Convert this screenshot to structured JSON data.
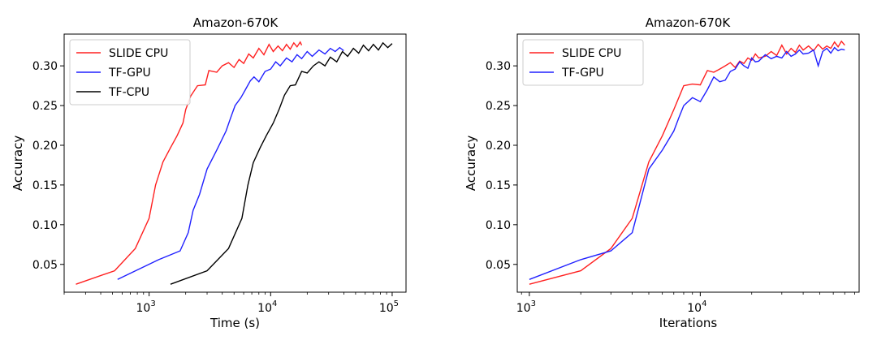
{
  "chart_data": [
    {
      "type": "line",
      "title": "Amazon-670K",
      "xlabel": "Time (s)",
      "ylabel": "Accuracy",
      "xscale": "log",
      "xlim": [
        200,
        130000
      ],
      "ylim": [
        0.015,
        0.34
      ],
      "xticks": [
        {
          "value": 1000,
          "base": "10",
          "exp": "3"
        },
        {
          "value": 10000,
          "base": "10",
          "exp": "4"
        },
        {
          "value": 100000,
          "base": "10",
          "exp": "5"
        }
      ],
      "yticks": [
        {
          "value": 0.05,
          "label": "0.05"
        },
        {
          "value": 0.1,
          "label": "0.10"
        },
        {
          "value": 0.15,
          "label": "0.15"
        },
        {
          "value": 0.2,
          "label": "0.20"
        },
        {
          "value": 0.25,
          "label": "0.25"
        },
        {
          "value": 0.3,
          "label": "0.30"
        }
      ],
      "legend": "top-left",
      "series": [
        {
          "name": "SLIDE CPU",
          "color": "#ff2020",
          "x": [
            250,
            520,
            770,
            1000,
            1130,
            1300,
            1500,
            1700,
            1900,
            2000,
            2200,
            2500,
            2900,
            3100,
            3600,
            4000,
            4500,
            5000,
            5500,
            6000,
            6600,
            7200,
            8000,
            8800,
            9700,
            10500,
            11500,
            12500,
            13500,
            14500,
            15500,
            16500,
            17500,
            18000
          ],
          "y": [
            0.025,
            0.042,
            0.07,
            0.108,
            0.15,
            0.179,
            0.197,
            0.212,
            0.228,
            0.245,
            0.262,
            0.275,
            0.276,
            0.294,
            0.292,
            0.3,
            0.304,
            0.298,
            0.308,
            0.303,
            0.315,
            0.31,
            0.322,
            0.314,
            0.327,
            0.318,
            0.325,
            0.319,
            0.327,
            0.321,
            0.329,
            0.324,
            0.33,
            0.326
          ]
        },
        {
          "name": "TF-GPU",
          "color": "#2020ff",
          "x": [
            550,
            1200,
            1800,
            2100,
            2300,
            2600,
            3000,
            3600,
            4300,
            4700,
            5100,
            5700,
            6200,
            6800,
            7300,
            8000,
            9000,
            10000,
            11000,
            12000,
            13500,
            15000,
            16500,
            18000,
            20000,
            22000,
            25000,
            28000,
            31000,
            34000,
            37000,
            40000
          ],
          "y": [
            0.031,
            0.056,
            0.067,
            0.09,
            0.118,
            0.138,
            0.17,
            0.194,
            0.218,
            0.235,
            0.25,
            0.26,
            0.27,
            0.281,
            0.286,
            0.28,
            0.293,
            0.296,
            0.305,
            0.3,
            0.31,
            0.305,
            0.314,
            0.309,
            0.318,
            0.312,
            0.32,
            0.315,
            0.322,
            0.318,
            0.323,
            0.319
          ]
        },
        {
          "name": "TF-CPU",
          "color": "#000000",
          "x": [
            1500,
            3000,
            4500,
            5800,
            6500,
            7200,
            8200,
            9200,
            10500,
            11800,
            13000,
            14500,
            16000,
            18000,
            20000,
            22500,
            25000,
            28000,
            31000,
            35000,
            39000,
            43000,
            48000,
            53000,
            58000,
            64000,
            70000,
            77000,
            84000,
            92000,
            100000
          ],
          "y": [
            0.025,
            0.042,
            0.07,
            0.108,
            0.15,
            0.178,
            0.197,
            0.212,
            0.228,
            0.246,
            0.263,
            0.275,
            0.276,
            0.293,
            0.291,
            0.3,
            0.305,
            0.3,
            0.311,
            0.305,
            0.318,
            0.312,
            0.322,
            0.316,
            0.326,
            0.319,
            0.327,
            0.32,
            0.329,
            0.323,
            0.328
          ]
        }
      ]
    },
    {
      "type": "line",
      "title": "Amazon-670K",
      "xlabel": "Iterations",
      "ylabel": "Accuracy",
      "xscale": "log",
      "xlim": [
        850,
        85000
      ],
      "ylim": [
        0.015,
        0.34
      ],
      "xticks": [
        {
          "value": 1000,
          "base": "10",
          "exp": "3"
        },
        {
          "value": 10000,
          "base": "10",
          "exp": "4"
        }
      ],
      "yticks": [
        {
          "value": 0.05,
          "label": "0.05"
        },
        {
          "value": 0.1,
          "label": "0.10"
        },
        {
          "value": 0.15,
          "label": "0.15"
        },
        {
          "value": 0.2,
          "label": "0.20"
        },
        {
          "value": 0.25,
          "label": "0.25"
        },
        {
          "value": 0.3,
          "label": "0.30"
        }
      ],
      "legend": "top-left",
      "series": [
        {
          "name": "SLIDE CPU",
          "color": "#ff2020",
          "x": [
            1000,
            2000,
            3000,
            4000,
            5000,
            6000,
            7000,
            8000,
            9000,
            10000,
            11000,
            12000,
            13000,
            14000,
            15000,
            16000,
            17000,
            18000,
            19000,
            20000,
            21000,
            22000,
            24000,
            26000,
            28000,
            30000,
            32000,
            34000,
            36000,
            38000,
            40000,
            43000,
            46000,
            49000,
            52000,
            55000,
            58000,
            61000,
            64000,
            67000,
            70000
          ],
          "y": [
            0.025,
            0.042,
            0.07,
            0.108,
            0.179,
            0.212,
            0.245,
            0.275,
            0.277,
            0.276,
            0.294,
            0.292,
            0.296,
            0.3,
            0.304,
            0.298,
            0.306,
            0.303,
            0.31,
            0.307,
            0.315,
            0.31,
            0.312,
            0.318,
            0.313,
            0.326,
            0.315,
            0.322,
            0.317,
            0.326,
            0.32,
            0.325,
            0.319,
            0.327,
            0.321,
            0.325,
            0.322,
            0.33,
            0.324,
            0.331,
            0.326
          ]
        },
        {
          "name": "TF-GPU",
          "color": "#2020ff",
          "x": [
            1000,
            2000,
            3000,
            4000,
            5000,
            6000,
            7000,
            7500,
            8000,
            9000,
            10000,
            11000,
            12000,
            13000,
            14000,
            15000,
            16000,
            17000,
            18000,
            19000,
            20000,
            21000,
            22000,
            24000,
            26000,
            28000,
            30000,
            32000,
            34000,
            36000,
            38000,
            40000,
            43000,
            46000,
            49000,
            52000,
            55000,
            58000,
            61000,
            64000,
            67000,
            70000
          ],
          "y": [
            0.031,
            0.056,
            0.067,
            0.09,
            0.17,
            0.194,
            0.218,
            0.235,
            0.25,
            0.26,
            0.255,
            0.27,
            0.286,
            0.28,
            0.282,
            0.293,
            0.296,
            0.305,
            0.3,
            0.297,
            0.31,
            0.305,
            0.306,
            0.314,
            0.309,
            0.312,
            0.31,
            0.318,
            0.312,
            0.315,
            0.32,
            0.315,
            0.316,
            0.32,
            0.3,
            0.318,
            0.322,
            0.316,
            0.323,
            0.319,
            0.321,
            0.32
          ]
        }
      ]
    }
  ]
}
